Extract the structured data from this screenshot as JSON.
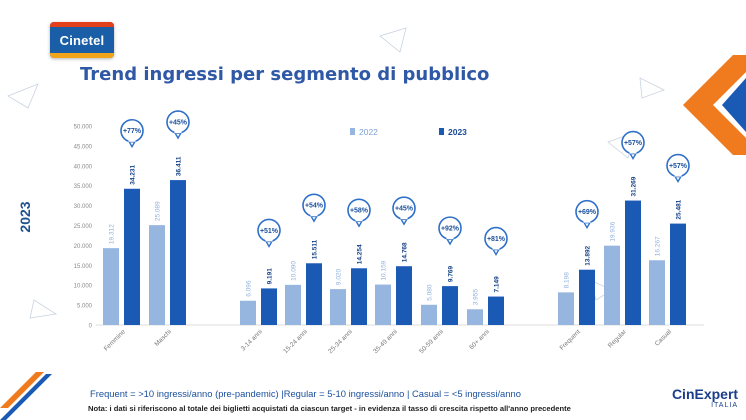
{
  "logo": {
    "text": "Cinetel"
  },
  "title": "Trend ingressi per segmento di pubblico",
  "side_label": "2023",
  "footnote_definitions": "Frequent = >10 ingressi/anno (pre-pandemic) |Regular = 5-10 ingressi/anno | Casual = <5 ingressi/anno",
  "footnote_note": "Nota: i dati si riferiscono al totale dei biglietti acquistati da ciascun target - in evidenza il tasso di crescita rispetto all'anno precedente",
  "brand_logo": {
    "line1": "CinExpert",
    "line2": "ITALIA"
  },
  "colors": {
    "series_2022": "#96b6df",
    "series_2023": "#1a5ab5",
    "title": "#2f58a6",
    "bubble_border": "#2e6fc9",
    "accent_orange": "#f07a1e"
  },
  "chart_data": {
    "type": "bar",
    "ylim": [
      0,
      50000
    ],
    "yticks": [
      "0",
      "5.000",
      "10.000",
      "15.000",
      "20.000",
      "25.000",
      "30.000",
      "35.000",
      "40.000",
      "45.000",
      "50.000"
    ],
    "legend_position": "top-right",
    "categories": [
      "Femmine",
      "Maschi",
      "3-14 anni",
      "15-24 anni",
      "25-34 anni",
      "35-49 anni",
      "50-59 anni",
      "60+ anni",
      "Frequent",
      "Regular",
      "Casual"
    ],
    "series": [
      {
        "name": "2022",
        "values": [
          19312,
          25089,
          6096,
          10090,
          9020,
          10159,
          5080,
          3955,
          8198,
          19936,
          16267
        ],
        "labels": [
          "19.312",
          "25.089",
          "6.096",
          "10.090",
          "9.020",
          "10.159",
          "5.080",
          "3.955",
          "8.198",
          "19.936",
          "16.267"
        ]
      },
      {
        "name": "2023",
        "values": [
          34231,
          36411,
          9191,
          15511,
          14254,
          14768,
          9769,
          7149,
          13892,
          31269,
          25481
        ],
        "labels": [
          "34.231",
          "36.411",
          "9.191",
          "15.511",
          "14.254",
          "14.768",
          "9.769",
          "7.149",
          "13.892",
          "31.269",
          "25.481"
        ]
      }
    ],
    "growth": [
      "+77%",
      "+45%",
      "+51%",
      "+54%",
      "+58%",
      "+45%",
      "+92%",
      "+81%",
      "+69%",
      "+57%",
      "+57%"
    ]
  }
}
